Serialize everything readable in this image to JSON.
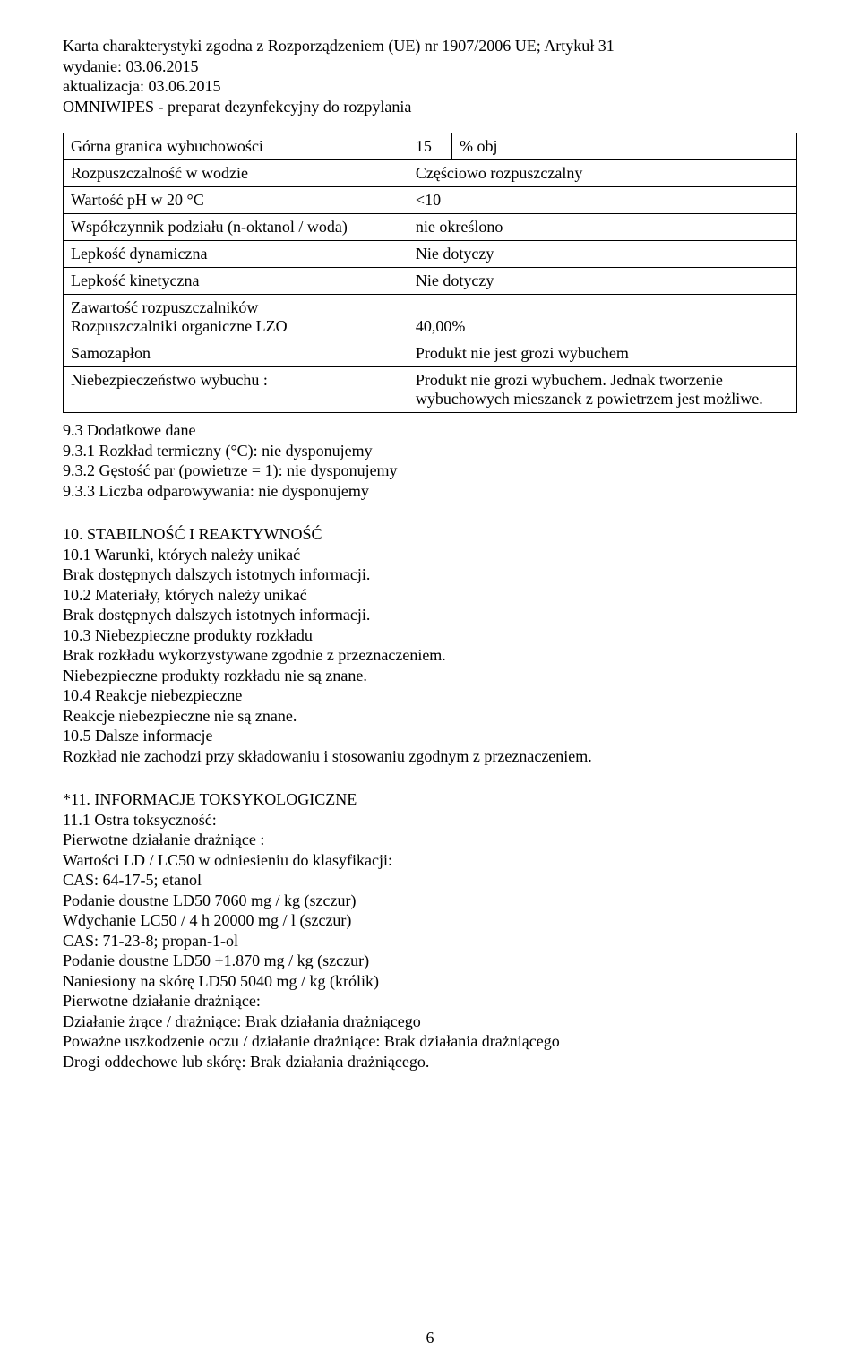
{
  "header": {
    "line1": "Karta charakterystyki zgodna z Rozporządzeniem (UE) nr 1907/2006 UE; Artykuł 31",
    "line2": "wydanie: 03.06.2015",
    "line3": "aktualizacja: 03.06.2015",
    "line4": "OMNIWIPES - preparat dezynfekcyjny do rozpylania"
  },
  "table": {
    "rows": [
      {
        "label": "Górna granica wybuchowości",
        "v1": "15",
        "v2": "% obj",
        "dual": true
      },
      {
        "label": "Rozpuszczalność w wodzie",
        "value": "Częściowo rozpuszczalny"
      },
      {
        "label": "Wartość pH w 20 °C",
        "value": "<10"
      },
      {
        "label": "Współczynnik podziału (n-oktanol / woda)",
        "value": "nie określono"
      },
      {
        "label": "Lepkość dynamiczna",
        "value": "Nie dotyczy"
      },
      {
        "label": "Lepkość kinetyczna",
        "value": "Nie dotyczy"
      },
      {
        "label": "Zawartość rozpuszczalników\nRozpuszczalniki organiczne LZO",
        "value": "40,00%",
        "valign": "bottom"
      },
      {
        "label": "Samozapłon",
        "value": "Produkt nie jest grozi wybuchem"
      },
      {
        "label": "Niebezpieczeństwo wybuchu :",
        "value": "Produkt nie grozi wybuchem. Jednak tworzenie wybuchowych mieszanek z powietrzem jest możliwe."
      }
    ]
  },
  "afterTableLines": [
    "9.3 Dodatkowe dane",
    "9.3.1 Rozkład termiczny (°C): nie dysponujemy",
    "9.3.2 Gęstość par (powietrze = 1): nie dysponujemy",
    "9.3.3 Liczba odparowywania: nie dysponujemy"
  ],
  "section10": [
    "10. STABILNOŚĆ I REAKTYWNOŚĆ",
    "10.1 Warunki, których należy unikać",
    "Brak dostępnych dalszych istotnych informacji.",
    "10.2 Materiały, których należy unikać",
    "Brak dostępnych dalszych istotnych informacji.",
    "10.3 Niebezpieczne produkty rozkładu",
    "Brak rozkładu wykorzystywane zgodnie z przeznaczeniem.",
    "Niebezpieczne produkty rozkładu nie są znane.",
    "10.4 Reakcje niebezpieczne",
    "Reakcje niebezpieczne nie są znane.",
    "10.5 Dalsze informacje",
    "Rozkład nie zachodzi przy składowaniu i stosowaniu zgodnym z przeznaczeniem."
  ],
  "section11": [
    "*11. INFORMACJE TOKSYKOLOGICZNE",
    "11.1 Ostra toksyczność:",
    "Pierwotne działanie drażniące :",
    "Wartości LD / LC50 w odniesieniu do klasyfikacji:",
    "CAS: 64-17-5; etanol",
    "Podanie doustne LD50 7060 mg / kg (szczur)",
    "Wdychanie LC50 / 4 h 20000 mg / l (szczur)",
    "CAS: 71-23-8; propan-1-ol",
    "Podanie doustne LD50 +1.870 mg / kg (szczur)",
    "Naniesiony na skórę LD50 5040 mg / kg (królik)",
    "Pierwotne działanie drażniące:",
    "Działanie żrące / drażniące: Brak działania drażniącego",
    "Poważne uszkodzenie oczu / działanie drażniące: Brak działania drażniącego",
    "Drogi oddechowe lub skórę: Brak działania drażniącego."
  ],
  "pageNumber": "6"
}
